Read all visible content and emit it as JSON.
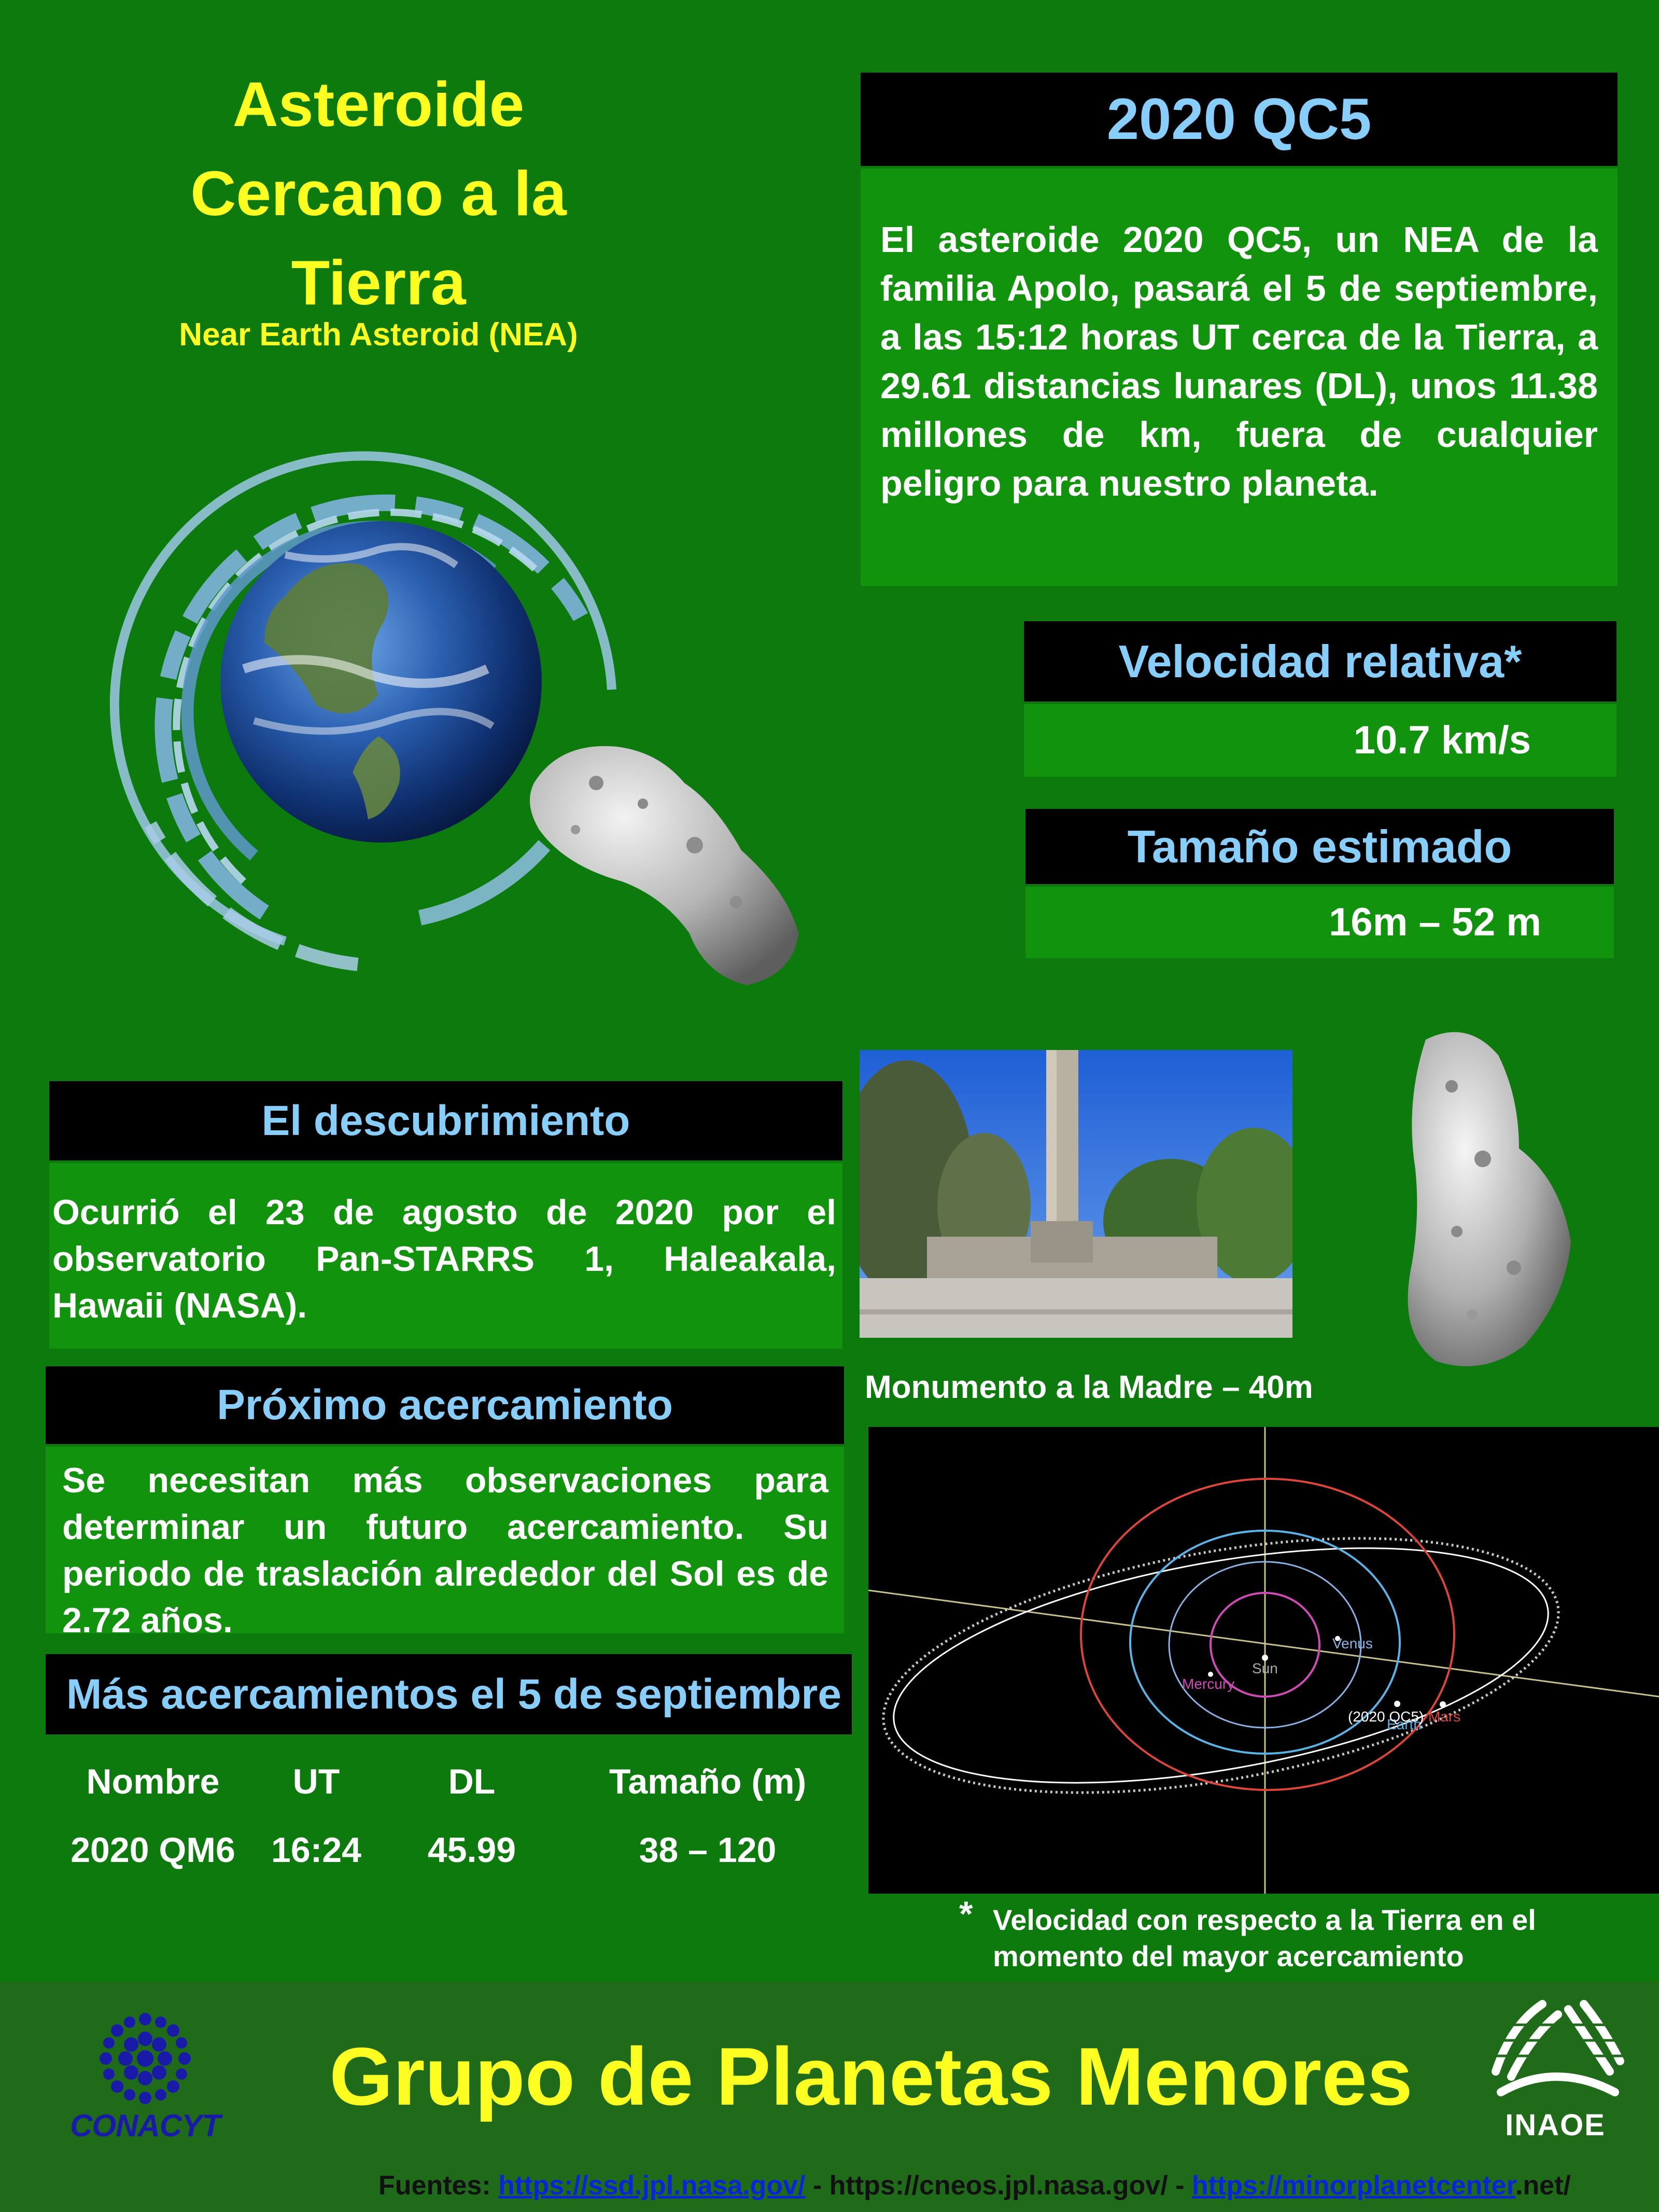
{
  "title": {
    "line1": "Asteroide",
    "line2": "Cercano a la",
    "line3": "Tierra",
    "subtitle": "Near Earth Asteroid (NEA)"
  },
  "main": {
    "name": "2020 QC5",
    "description": "El asteroide 2020 QC5, un NEA de la familia Apolo, pasará el 5 de septiembre, a las 15:12 horas UT cerca de la Tierra, a 29.61 distancias lunares (DL), unos 11.38 millones de km, fuera de cualquier peligro para nuestro planeta."
  },
  "velocity": {
    "heading": "Velocidad relativa*",
    "value": "10.7 km/s"
  },
  "size": {
    "heading": "Tamaño estimado",
    "value": "16m – 52 m"
  },
  "discovery": {
    "heading": "El descubrimiento",
    "text": "Ocurrió el 23 de agosto de 2020 por el observatorio Pan-STARRS 1, Haleakala, Hawaii (NASA)."
  },
  "next": {
    "heading": "Próximo acercamiento",
    "text": "Se necesitan más observaciones para determinar un futuro acercamiento. Su periodo de traslación alrededor del Sol es de 2.72 años."
  },
  "more": {
    "heading": "Más acercamientos el 5 de septiembre",
    "columns": [
      "Nombre",
      "UT",
      "DL",
      "Tamaño (m)"
    ],
    "rows": [
      [
        "2020 QM6",
        "16:24",
        "45.99",
        "38 – 120"
      ]
    ]
  },
  "monument_caption": "Monumento a la Madre – 40m",
  "orbit": {
    "sun": "Sun",
    "mercury": "Mercury",
    "venus": "Venus",
    "earth": "Earth",
    "mars": "Mars",
    "asteroid": "(2020 QC5)"
  },
  "footnote": {
    "star": "*",
    "text": "Velocidad con respecto a la Tierra en el momento del mayor acercamiento"
  },
  "footer": {
    "title": "Grupo de Planetas Menores",
    "conacyt": "CONACYT",
    "inaoe": "INAOE",
    "sources_label": "Fuentes:",
    "source1": "https://ssd.jpl.nasa.gov/",
    "sep1": " - ",
    "source2": "https://cneos.jpl.nasa.gov/",
    "sep2": " - ",
    "source3a": "https://minorplanetcenter",
    "source3b": ".net/"
  },
  "colors": {
    "background": "#0c7a0c",
    "box": "#12930d",
    "title_yellow": "#ffff22",
    "heading_blue": "#87cefa",
    "footer_bg": "#1f6b1a"
  }
}
